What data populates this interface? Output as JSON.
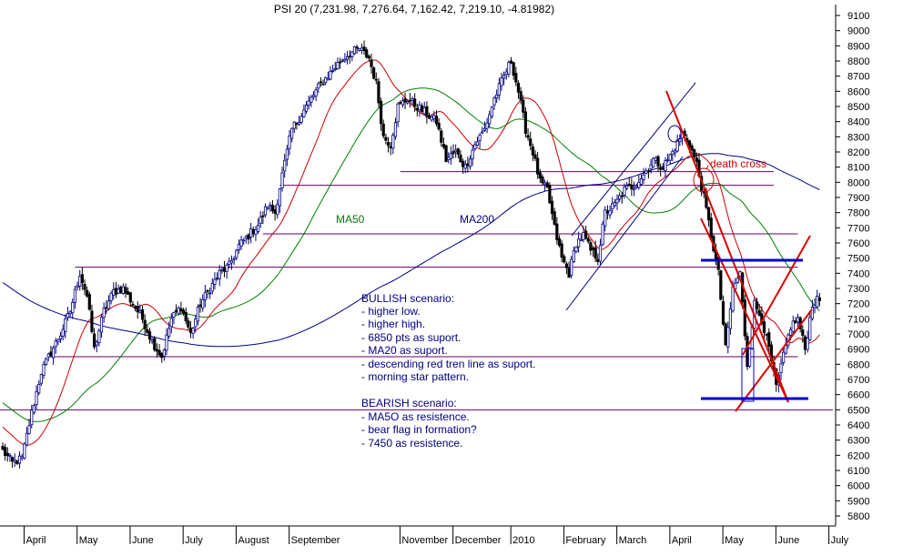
{
  "chart_data": {
    "type": "candlestick",
    "title": "PSI 20 (7,231.98, 7,276.64, 7,162.42, 7,219.10, -4.81982)",
    "y_axis": {
      "position": "right",
      "ylim": [
        5700,
        9200
      ],
      "ticks": [
        "9100",
        "9000",
        "8900",
        "8800",
        "8700",
        "8600",
        "8500",
        "8400",
        "8300",
        "8200",
        "8100",
        "8000",
        "7900",
        "7800",
        "7700",
        "7600",
        "7500",
        "7400",
        "7300",
        "7200",
        "7100",
        "7000",
        "6900",
        "6800",
        "6700",
        "6600",
        "6500",
        "6400",
        "6300",
        "6200",
        "6100",
        "6000",
        "5900",
        "5800"
      ]
    },
    "x_axis": {
      "labels": [
        {
          "text": "April",
          "index": 10
        },
        {
          "text": "May",
          "index": 32
        },
        {
          "text": "June",
          "index": 54
        },
        {
          "text": "July",
          "index": 76
        },
        {
          "text": "August",
          "index": 98
        },
        {
          "text": "September",
          "index": 120
        },
        {
          "text": "November",
          "index": 166
        },
        {
          "text": "December",
          "index": 188
        },
        {
          "text": "2010",
          "index": 212
        },
        {
          "text": "February",
          "index": 234
        },
        {
          "text": "March",
          "index": 256
        },
        {
          "text": "April",
          "index": 278
        },
        {
          "text": "May",
          "index": 300
        },
        {
          "text": "June",
          "index": 322
        },
        {
          "text": "July",
          "index": 344
        }
      ],
      "n_bars": 340
    },
    "price_anchors": [
      [
        0,
        6230
      ],
      [
        4,
        6150
      ],
      [
        8,
        6180
      ],
      [
        12,
        6480
      ],
      [
        16,
        6750
      ],
      [
        20,
        6880
      ],
      [
        24,
        7000
      ],
      [
        28,
        7150
      ],
      [
        32,
        7400
      ],
      [
        35,
        7250
      ],
      [
        38,
        6900
      ],
      [
        42,
        7150
      ],
      [
        46,
        7280
      ],
      [
        50,
        7300
      ],
      [
        54,
        7200
      ],
      [
        58,
        7100
      ],
      [
        62,
        6950
      ],
      [
        66,
        6850
      ],
      [
        70,
        7100
      ],
      [
        74,
        7180
      ],
      [
        78,
        7000
      ],
      [
        82,
        7200
      ],
      [
        86,
        7300
      ],
      [
        90,
        7400
      ],
      [
        94,
        7450
      ],
      [
        98,
        7580
      ],
      [
        102,
        7650
      ],
      [
        106,
        7720
      ],
      [
        110,
        7850
      ],
      [
        113,
        7800
      ],
      [
        116,
        8050
      ],
      [
        120,
        8350
      ],
      [
        124,
        8450
      ],
      [
        128,
        8550
      ],
      [
        132,
        8650
      ],
      [
        136,
        8720
      ],
      [
        140,
        8800
      ],
      [
        144,
        8850
      ],
      [
        148,
        8880
      ],
      [
        152,
        8820
      ],
      [
        155,
        8650
      ],
      [
        158,
        8300
      ],
      [
        161,
        8250
      ],
      [
        164,
        8500
      ],
      [
        168,
        8550
      ],
      [
        172,
        8500
      ],
      [
        176,
        8450
      ],
      [
        180,
        8400
      ],
      [
        184,
        8150
      ],
      [
        188,
        8200
      ],
      [
        192,
        8100
      ],
      [
        196,
        8250
      ],
      [
        200,
        8350
      ],
      [
        204,
        8550
      ],
      [
        208,
        8700
      ],
      [
        211,
        8800
      ],
      [
        214,
        8600
      ],
      [
        217,
        8350
      ],
      [
        220,
        8200
      ],
      [
        223,
        8000
      ],
      [
        226,
        7950
      ],
      [
        229,
        7700
      ],
      [
        232,
        7500
      ],
      [
        235,
        7400
      ],
      [
        238,
        7600
      ],
      [
        241,
        7650
      ],
      [
        244,
        7550
      ],
      [
        247,
        7500
      ],
      [
        250,
        7800
      ],
      [
        254,
        7850
      ],
      [
        258,
        7950
      ],
      [
        262,
        7980
      ],
      [
        266,
        8050
      ],
      [
        270,
        8150
      ],
      [
        274,
        8100
      ],
      [
        278,
        8200
      ],
      [
        282,
        8320
      ],
      [
        285,
        8250
      ],
      [
        288,
        8120
      ],
      [
        291,
        7900
      ],
      [
        294,
        7650
      ],
      [
        297,
        7400
      ],
      [
        300,
        6900
      ],
      [
        303,
        7300
      ],
      [
        306,
        7400
      ],
      [
        309,
        6800
      ],
      [
        312,
        7200
      ],
      [
        315,
        7100
      ],
      [
        318,
        6900
      ],
      [
        321,
        6650
      ],
      [
        324,
        6850
      ],
      [
        327,
        7050
      ],
      [
        330,
        7100
      ],
      [
        333,
        6900
      ],
      [
        336,
        7200
      ],
      [
        339,
        7230
      ]
    ],
    "series": [
      {
        "name": "MA50",
        "color": "#008000",
        "period": 50
      },
      {
        "name": "MA200",
        "color": "#000080",
        "period": 200
      },
      {
        "name": "",
        "color": "#cc0000",
        "period": 20
      }
    ],
    "horizontal_lines": [
      {
        "y": 8070,
        "from_index": 165,
        "to_index": 320,
        "color": "#660066"
      },
      {
        "y": 7980,
        "from_index": 115,
        "to_index": 320,
        "color": "#660066"
      },
      {
        "y": 7660,
        "from_index": 108,
        "to_index": 330,
        "color": "#660066"
      },
      {
        "y": 7440,
        "from_index": 30,
        "to_index": 330,
        "color": "#660066"
      },
      {
        "y": 6850,
        "from_index": 20,
        "to_index": 330,
        "color": "#660066"
      },
      {
        "y": 6500,
        "from_index": -5,
        "to_index": 345,
        "color": "#660066"
      }
    ],
    "annotations": [
      {
        "text": "MA50",
        "color": "#008000"
      },
      {
        "text": "MA200",
        "color": "#000080"
      },
      {
        "text": "death cross",
        "color": "#cc0000"
      }
    ],
    "notes": {
      "bullish_title": "BULLISH scenario:",
      "bullish_items": [
        "- higher low.",
        "- higher high.",
        "- 6850 pts as suport.",
        "- MA20 as suport.",
        "- descending red tren line as suport.",
        "- morning star pattern."
      ],
      "bearish_title": "BEARISH scenario:",
      "bearish_items": [
        "- MA5O as resistence.",
        "- bear flag in formation?",
        "- 7450 as resistence."
      ]
    },
    "colors": {
      "up": "#000080",
      "down": "#000000",
      "hline": "#660066",
      "grid": "#000000",
      "text_note": "#000080"
    }
  }
}
